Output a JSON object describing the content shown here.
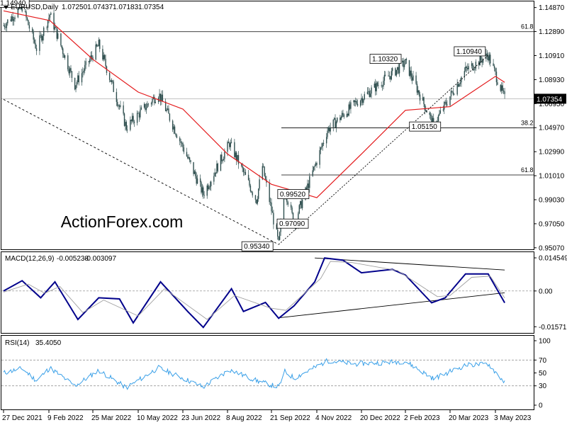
{
  "chart_data": [
    {
      "type": "candlestick",
      "panel": "price",
      "header": {
        "symbol": "EURUSD,Daily",
        "ohlc": [
          "1.07250",
          "1.07437",
          "1.07183",
          "1.07354"
        ]
      },
      "watermark": "ActionForex.com",
      "ylim": [
        0.95,
        1.152
      ],
      "y_ticks": [
        "1.14870",
        "1.12890",
        "1.10910",
        "1.08930",
        "1.06950",
        "1.04970",
        "1.02990",
        "1.01010",
        "0.99030",
        "0.97050",
        "0.95070"
      ],
      "x_ticks": [
        "27 Dec 2021",
        "9 Feb 2022",
        "25 Mar 2022",
        "10 May 2022",
        "23 Jun 2022",
        "8 Aug 2022",
        "21 Sep 2022",
        "4 Nov 2022",
        "20 Dec 2022",
        "2 Feb 2023",
        "20 Mar 2023",
        "3 May 2023"
      ],
      "last_price": "1.07354",
      "fib_levels": [
        {
          "label": "61.8",
          "value": 1.1288
        },
        {
          "label": "38.2",
          "value": 1.0495
        },
        {
          "label": "61.8",
          "value": 1.0107
        }
      ],
      "price_labels": [
        {
          "text": "1.14940",
          "value": 1.1494
        },
        {
          "text": "1.10320",
          "value": 1.1032
        },
        {
          "text": "1.10940",
          "value": 1.1094
        },
        {
          "text": "1.05150",
          "value": 1.0515
        },
        {
          "text": "0.99520",
          "value": 0.9952
        },
        {
          "text": "0.97090",
          "value": 0.9709
        },
        {
          "text": "0.95340",
          "value": 0.9534
        }
      ],
      "key_points": [
        {
          "date": "27 Dec 2021",
          "value": 1.134
        },
        {
          "date": "14 Jan 2022",
          "value": 1.1494
        },
        {
          "date": "28 Jan 2022",
          "value": 1.115
        },
        {
          "date": "10 Feb 2022",
          "value": 1.143
        },
        {
          "date": "7 Mar 2022",
          "value": 1.085
        },
        {
          "date": "31 Mar 2022",
          "value": 1.118
        },
        {
          "date": "28 Apr 2022",
          "value": 1.05
        },
        {
          "date": "30 May 2022",
          "value": 1.078
        },
        {
          "date": "14 Jul 2022",
          "value": 0.995
        },
        {
          "date": "10 Aug 2022",
          "value": 1.037
        },
        {
          "date": "6 Sep 2022",
          "value": 0.99
        },
        {
          "date": "12 Sep 2022",
          "value": 1.018
        },
        {
          "date": "28 Sep 2022",
          "value": 0.9534
        },
        {
          "date": "4 Oct 2022",
          "value": 0.999
        },
        {
          "date": "13 Oct 2022",
          "value": 0.9709
        },
        {
          "date": "15 Nov 2022",
          "value": 1.048
        },
        {
          "date": "14 Dec 2022",
          "value": 1.07
        },
        {
          "date": "2 Feb 2023",
          "value": 1.1032
        },
        {
          "date": "3 Mar 2023",
          "value": 1.0515
        },
        {
          "date": "4 Apr 2023",
          "value": 1.097
        },
        {
          "date": "26 Apr 2023",
          "value": 1.1094
        },
        {
          "date": "12 May 2023",
          "value": 1.0735
        }
      ],
      "moving_average": [
        {
          "date": "27 Dec 2021",
          "value": 1.146
        },
        {
          "date": "10 Feb 2022",
          "value": 1.138
        },
        {
          "date": "25 Mar 2022",
          "value": 1.106
        },
        {
          "date": "10 May 2022",
          "value": 1.079
        },
        {
          "date": "23 Jun 2022",
          "value": 1.065
        },
        {
          "date": "8 Aug 2022",
          "value": 1.028
        },
        {
          "date": "21 Sep 2022",
          "value": 1.003
        },
        {
          "date": "4 Nov 2022",
          "value": 0.992
        },
        {
          "date": "20 Dec 2022",
          "value": 1.028
        },
        {
          "date": "2 Feb 2023",
          "value": 1.064
        },
        {
          "date": "20 Mar 2023",
          "value": 1.067
        },
        {
          "date": "3 May 2023",
          "value": 1.092
        },
        {
          "date": "12 May 2023",
          "value": 1.087
        }
      ],
      "trendlines": [
        {
          "style": "dashed",
          "from": {
            "date": "27 Dec 2021",
            "value": 1.073
          },
          "to": {
            "date": "28 Sep 2022",
            "value": 0.9534
          }
        },
        {
          "style": "dashed",
          "from": {
            "date": "28 Sep 2022",
            "value": 0.9534
          },
          "to": {
            "date": "26 Apr 2023",
            "value": 1.1094
          }
        }
      ]
    },
    {
      "type": "line",
      "panel": "macd",
      "header": {
        "label": "MACD(12,26,9)",
        "values": [
          "-0.005238",
          "-0.003097"
        ]
      },
      "ylim": [
        -0.0178,
        0.0158
      ],
      "y_ticks": [
        "0.014549",
        "0.00",
        "-0.015712"
      ],
      "series": [
        {
          "role": "macd",
          "points": [
            {
              "date": "27 Dec 2021",
              "value": 0.0
            },
            {
              "date": "14 Jan 2022",
              "value": 0.0045
            },
            {
              "date": "1 Feb 2022",
              "value": -0.003
            },
            {
              "date": "15 Feb 2022",
              "value": 0.004
            },
            {
              "date": "10 Mar 2022",
              "value": -0.0125
            },
            {
              "date": "31 Mar 2022",
              "value": -0.003
            },
            {
              "date": "21 Apr 2022",
              "value": -0.0035
            },
            {
              "date": "5 May 2022",
              "value": -0.014
            },
            {
              "date": "1 Jun 2022",
              "value": 0.004
            },
            {
              "date": "28 Jun 2022",
              "value": -0.009
            },
            {
              "date": "14 Jul 2022",
              "value": -0.016
            },
            {
              "date": "12 Aug 2022",
              "value": 0.001
            },
            {
              "date": "24 Aug 2022",
              "value": -0.009
            },
            {
              "date": "15 Sep 2022",
              "value": -0.005
            },
            {
              "date": "28 Sep 2022",
              "value": -0.012
            },
            {
              "date": "13 Oct 2022",
              "value": -0.0065
            },
            {
              "date": "2 Nov 2022",
              "value": 0.004
            },
            {
              "date": "12 Nov 2022",
              "value": 0.0145
            },
            {
              "date": "1 Dec 2022",
              "value": 0.0135
            },
            {
              "date": "20 Dec 2022",
              "value": 0.008
            },
            {
              "date": "20 Jan 2023",
              "value": 0.0095
            },
            {
              "date": "2 Feb 2023",
              "value": 0.007
            },
            {
              "date": "1 Mar 2023",
              "value": -0.0052
            },
            {
              "date": "15 Mar 2023",
              "value": -0.003
            },
            {
              "date": "4 Apr 2023",
              "value": 0.0075
            },
            {
              "date": "26 Apr 2023",
              "value": 0.0075
            },
            {
              "date": "12 May 2023",
              "value": -0.0052
            }
          ]
        },
        {
          "role": "signal",
          "points": [
            {
              "date": "27 Dec 2021",
              "value": -0.0005
            },
            {
              "date": "20 Jan 2022",
              "value": 0.003
            },
            {
              "date": "5 Feb 2022",
              "value": -0.001
            },
            {
              "date": "20 Feb 2022",
              "value": 0.002
            },
            {
              "date": "15 Mar 2022",
              "value": -0.0095
            },
            {
              "date": "5 Apr 2022",
              "value": -0.004
            },
            {
              "date": "10 May 2022",
              "value": -0.011
            },
            {
              "date": "5 Jun 2022",
              "value": 0.001
            },
            {
              "date": "18 Jul 2022",
              "value": -0.0125
            },
            {
              "date": "15 Aug 2022",
              "value": -0.002
            },
            {
              "date": "20 Sep 2022",
              "value": -0.0075
            },
            {
              "date": "5 Oct 2022",
              "value": -0.0085
            },
            {
              "date": "8 Nov 2022",
              "value": 0.0055
            },
            {
              "date": "18 Nov 2022",
              "value": 0.013
            },
            {
              "date": "10 Dec 2022",
              "value": 0.0125
            },
            {
              "date": "25 Jan 2023",
              "value": 0.009
            },
            {
              "date": "7 Mar 2023",
              "value": -0.0025
            },
            {
              "date": "20 Mar 2023",
              "value": -0.002
            },
            {
              "date": "10 Apr 2023",
              "value": 0.006
            },
            {
              "date": "28 Apr 2023",
              "value": 0.0065
            },
            {
              "date": "12 May 2023",
              "value": -0.0031
            }
          ]
        }
      ],
      "trendlines": [
        {
          "from": {
            "date": "2 Nov 2022",
            "value": 0.0145
          },
          "to": {
            "date": "12 May 2023",
            "value": 0.0092
          }
        },
        {
          "from": {
            "date": "28 Sep 2022",
            "value": -0.0118
          },
          "to": {
            "date": "12 May 2023",
            "value": -0.0008
          }
        }
      ]
    },
    {
      "type": "line",
      "panel": "rsi",
      "header": {
        "label": "RSI(14)",
        "value": "35.4050"
      },
      "ylim": [
        0,
        100
      ],
      "y_ticks": [
        "100",
        "70",
        "50",
        "30",
        "0"
      ],
      "levels": [
        70,
        30
      ],
      "series": [
        {
          "role": "rsi",
          "points": [
            {
              "date": "27 Dec 2021",
              "value": 50
            },
            {
              "date": "14 Jan 2022",
              "value": 57
            },
            {
              "date": "28 Jan 2022",
              "value": 38
            },
            {
              "date": "10 Feb 2022",
              "value": 58
            },
            {
              "date": "7 Mar 2022",
              "value": 30
            },
            {
              "date": "31 Mar 2022",
              "value": 54
            },
            {
              "date": "28 Apr 2022",
              "value": 27
            },
            {
              "date": "30 May 2022",
              "value": 58
            },
            {
              "date": "14 Jul 2022",
              "value": 28
            },
            {
              "date": "10 Aug 2022",
              "value": 55
            },
            {
              "date": "6 Sep 2022",
              "value": 38
            },
            {
              "date": "28 Sep 2022",
              "value": 28
            },
            {
              "date": "4 Oct 2022",
              "value": 52
            },
            {
              "date": "13 Oct 2022",
              "value": 42
            },
            {
              "date": "15 Nov 2022",
              "value": 69
            },
            {
              "date": "14 Dec 2022",
              "value": 64
            },
            {
              "date": "2 Feb 2023",
              "value": 68
            },
            {
              "date": "3 Mar 2023",
              "value": 41
            },
            {
              "date": "4 Apr 2023",
              "value": 62
            },
            {
              "date": "26 Apr 2023",
              "value": 64
            },
            {
              "date": "12 May 2023",
              "value": 35.4
            }
          ]
        }
      ]
    }
  ]
}
